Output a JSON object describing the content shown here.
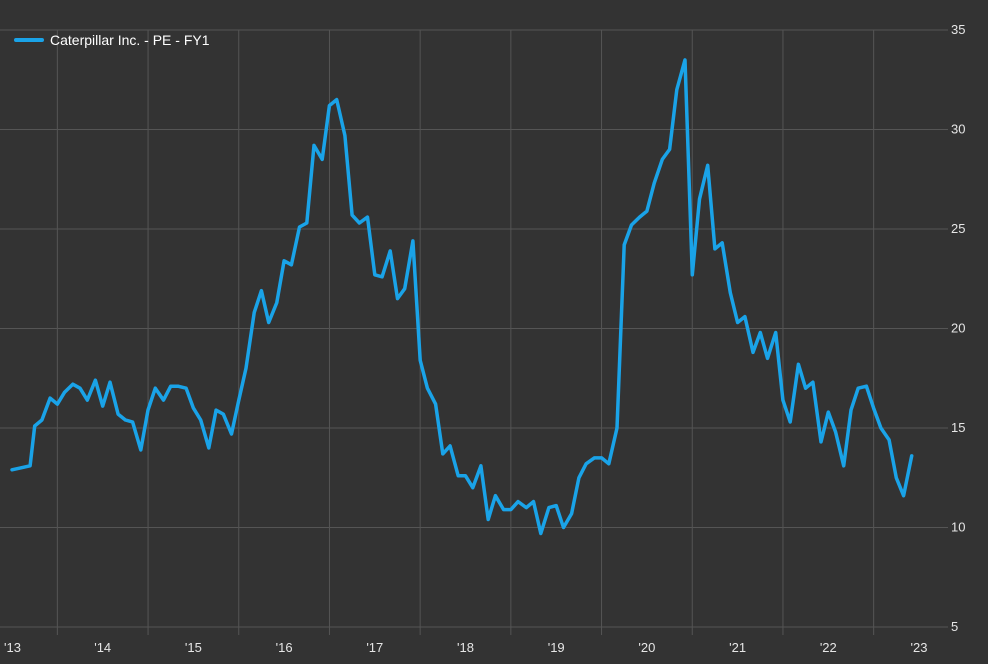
{
  "chart_data": {
    "type": "line",
    "title": "",
    "xlabel": "",
    "ylabel": "",
    "legend": {
      "position": "top-left"
    },
    "grid": true,
    "x_axis": {
      "min": 2013.0,
      "max": 2023.33,
      "ticks": [
        2013,
        2014,
        2015,
        2016,
        2017,
        2018,
        2019,
        2020,
        2021,
        2022,
        2023
      ],
      "tick_labels": [
        "'13",
        "'14",
        "'15",
        "'16",
        "'17",
        "'18",
        "'19",
        "'20",
        "'21",
        "'22",
        "'23"
      ]
    },
    "y_axis": {
      "min": 5,
      "max": 35,
      "position": "right",
      "ticks": [
        5,
        10,
        15,
        20,
        25,
        30,
        35
      ],
      "tick_labels": [
        "5",
        "10",
        "15",
        "20",
        "25",
        "30",
        "35"
      ]
    },
    "series": [
      {
        "name": "Caterpillar Inc. - PE - FY1",
        "color": "#1aa3e8",
        "points": [
          [
            2013.0,
            12.9
          ],
          [
            2013.1,
            13.0
          ],
          [
            2013.2,
            13.1
          ],
          [
            2013.25,
            15.1
          ],
          [
            2013.33,
            15.4
          ],
          [
            2013.42,
            16.5
          ],
          [
            2013.5,
            16.2
          ],
          [
            2013.58,
            16.8
          ],
          [
            2013.67,
            17.2
          ],
          [
            2013.75,
            17.0
          ],
          [
            2013.83,
            16.4
          ],
          [
            2013.92,
            17.4
          ],
          [
            2014.0,
            16.1
          ],
          [
            2014.08,
            17.3
          ],
          [
            2014.17,
            15.7
          ],
          [
            2014.25,
            15.4
          ],
          [
            2014.33,
            15.3
          ],
          [
            2014.42,
            13.9
          ],
          [
            2014.5,
            15.9
          ],
          [
            2014.58,
            17.0
          ],
          [
            2014.67,
            16.4
          ],
          [
            2014.75,
            17.1
          ],
          [
            2014.83,
            17.1
          ],
          [
            2014.92,
            17.0
          ],
          [
            2015.0,
            16.0
          ],
          [
            2015.08,
            15.4
          ],
          [
            2015.17,
            14.0
          ],
          [
            2015.25,
            15.9
          ],
          [
            2015.33,
            15.7
          ],
          [
            2015.42,
            14.7
          ],
          [
            2015.5,
            16.4
          ],
          [
            2015.58,
            18.0
          ],
          [
            2015.67,
            20.8
          ],
          [
            2015.75,
            21.9
          ],
          [
            2015.83,
            20.3
          ],
          [
            2015.92,
            21.3
          ],
          [
            2016.0,
            23.4
          ],
          [
            2016.08,
            23.2
          ],
          [
            2016.17,
            25.1
          ],
          [
            2016.25,
            25.3
          ],
          [
            2016.33,
            29.2
          ],
          [
            2016.42,
            28.5
          ],
          [
            2016.5,
            31.2
          ],
          [
            2016.58,
            31.5
          ],
          [
            2016.67,
            29.7
          ],
          [
            2016.75,
            25.7
          ],
          [
            2016.83,
            25.3
          ],
          [
            2016.92,
            25.6
          ],
          [
            2017.0,
            22.7
          ],
          [
            2017.08,
            22.6
          ],
          [
            2017.17,
            23.9
          ],
          [
            2017.25,
            21.5
          ],
          [
            2017.33,
            22.0
          ],
          [
            2017.42,
            24.4
          ],
          [
            2017.5,
            18.4
          ],
          [
            2017.58,
            17.0
          ],
          [
            2017.67,
            16.2
          ],
          [
            2017.75,
            13.7
          ],
          [
            2017.83,
            14.1
          ],
          [
            2017.92,
            12.6
          ],
          [
            2018.0,
            12.6
          ],
          [
            2018.08,
            12.0
          ],
          [
            2018.17,
            13.1
          ],
          [
            2018.25,
            10.4
          ],
          [
            2018.33,
            11.6
          ],
          [
            2018.42,
            10.9
          ],
          [
            2018.5,
            10.9
          ],
          [
            2018.58,
            11.3
          ],
          [
            2018.67,
            11.0
          ],
          [
            2018.75,
            11.3
          ],
          [
            2018.83,
            9.7
          ],
          [
            2018.92,
            11.0
          ],
          [
            2019.0,
            11.1
          ],
          [
            2019.08,
            10.0
          ],
          [
            2019.17,
            10.7
          ],
          [
            2019.25,
            12.5
          ],
          [
            2019.33,
            13.2
          ],
          [
            2019.42,
            13.5
          ],
          [
            2019.5,
            13.5
          ],
          [
            2019.58,
            13.2
          ],
          [
            2019.67,
            15.0
          ],
          [
            2019.75,
            24.2
          ],
          [
            2019.83,
            25.2
          ],
          [
            2019.92,
            25.6
          ],
          [
            2020.0,
            25.9
          ],
          [
            2020.08,
            27.3
          ],
          [
            2020.17,
            28.5
          ],
          [
            2020.25,
            29.0
          ],
          [
            2020.33,
            32.0
          ],
          [
            2020.42,
            33.5
          ],
          [
            2020.5,
            22.7
          ],
          [
            2020.58,
            26.5
          ],
          [
            2020.67,
            28.2
          ],
          [
            2020.75,
            24.0
          ],
          [
            2020.83,
            24.3
          ],
          [
            2020.92,
            21.8
          ],
          [
            2021.0,
            20.3
          ],
          [
            2021.08,
            20.6
          ],
          [
            2021.17,
            18.8
          ],
          [
            2021.25,
            19.8
          ],
          [
            2021.33,
            18.5
          ],
          [
            2021.42,
            19.8
          ],
          [
            2021.5,
            16.4
          ],
          [
            2021.58,
            15.3
          ],
          [
            2021.67,
            18.2
          ],
          [
            2021.75,
            17.0
          ],
          [
            2021.83,
            17.3
          ],
          [
            2021.92,
            14.3
          ],
          [
            2022.0,
            15.8
          ],
          [
            2022.08,
            14.8
          ],
          [
            2022.17,
            13.1
          ],
          [
            2022.25,
            15.9
          ],
          [
            2022.33,
            17.0
          ],
          [
            2022.42,
            17.1
          ],
          [
            2022.5,
            16.0
          ],
          [
            2022.58,
            15.0
          ],
          [
            2022.67,
            14.4
          ],
          [
            2022.75,
            12.5
          ],
          [
            2022.83,
            11.6
          ],
          [
            2022.92,
            13.6
          ]
        ]
      }
    ]
  }
}
